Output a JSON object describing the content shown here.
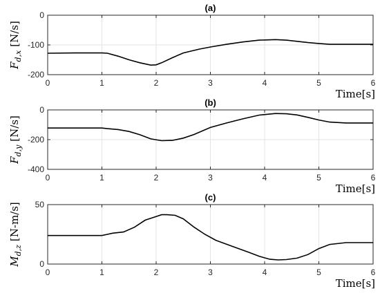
{
  "chart_data": [
    {
      "type": "line",
      "title": "(a)",
      "xlabel": "Time[s]",
      "ylabel_main": "F",
      "ylabel_sub": "d,x",
      "ylabel_unit": "[N/s]",
      "xlim": [
        0,
        6
      ],
      "ylim": [
        -200,
        0
      ],
      "xticks": [
        0,
        1,
        2,
        3,
        4,
        5,
        6
      ],
      "yticks": [
        0,
        -100,
        -200
      ],
      "grid": true,
      "series": [
        {
          "x": [
            0,
            0.5,
            1.0,
            1.1,
            1.3,
            1.5,
            1.7,
            1.9,
            2.0,
            2.1,
            2.3,
            2.5,
            2.8,
            3.0,
            3.3,
            3.6,
            3.9,
            4.2,
            4.4,
            4.6,
            4.8,
            5.0,
            5.2,
            5.5,
            6.0
          ],
          "y": [
            -128,
            -127,
            -127,
            -128,
            -138,
            -150,
            -160,
            -168,
            -167,
            -160,
            -143,
            -127,
            -114,
            -107,
            -98,
            -90,
            -84,
            -82,
            -84,
            -88,
            -92,
            -95,
            -98,
            -98,
            -98
          ]
        }
      ]
    },
    {
      "type": "line",
      "title": "(b)",
      "xlabel": "Time[s]",
      "ylabel_main": "F",
      "ylabel_sub": "d,y",
      "ylabel_unit": "[N/s]",
      "xlim": [
        0,
        6
      ],
      "ylim": [
        -400,
        0
      ],
      "xticks": [
        0,
        1,
        2,
        3,
        4,
        5,
        6
      ],
      "yticks": [
        0,
        -200,
        -400
      ],
      "grid": true,
      "series": [
        {
          "x": [
            0,
            0.5,
            1.0,
            1.1,
            1.3,
            1.5,
            1.7,
            1.9,
            2.1,
            2.3,
            2.5,
            2.7,
            3.0,
            3.3,
            3.6,
            3.9,
            4.2,
            4.4,
            4.6,
            4.8,
            5.0,
            5.2,
            5.5,
            6.0
          ],
          "y": [
            -122,
            -122,
            -122,
            -126,
            -132,
            -145,
            -167,
            -195,
            -207,
            -205,
            -190,
            -165,
            -118,
            -88,
            -60,
            -35,
            -24,
            -26,
            -34,
            -50,
            -68,
            -82,
            -88,
            -88
          ]
        }
      ]
    },
    {
      "type": "line",
      "title": "(c)",
      "xlabel": "Time[s]",
      "ylabel_main": "M",
      "ylabel_sub": "d,z",
      "ylabel_unit": "[N-m/s]",
      "xlim": [
        0,
        6
      ],
      "ylim": [
        0,
        50
      ],
      "xticks": [
        0,
        1,
        2,
        3,
        4,
        5,
        6
      ],
      "yticks": [
        0,
        50
      ],
      "grid": true,
      "series": [
        {
          "x": [
            0,
            0.5,
            1.0,
            1.1,
            1.2,
            1.4,
            1.6,
            1.8,
            2.0,
            2.1,
            2.2,
            2.35,
            2.5,
            2.7,
            2.9,
            3.1,
            3.4,
            3.7,
            3.9,
            4.1,
            4.25,
            4.4,
            4.6,
            4.8,
            5.0,
            5.2,
            5.5,
            6.0
          ],
          "y": [
            24,
            24,
            24,
            25,
            26,
            27,
            31,
            37,
            40,
            41.5,
            41.5,
            41,
            38,
            31,
            25,
            20,
            15,
            10,
            6.5,
            4,
            3.5,
            3.8,
            5,
            8,
            13,
            16.5,
            18,
            18
          ]
        }
      ]
    }
  ]
}
